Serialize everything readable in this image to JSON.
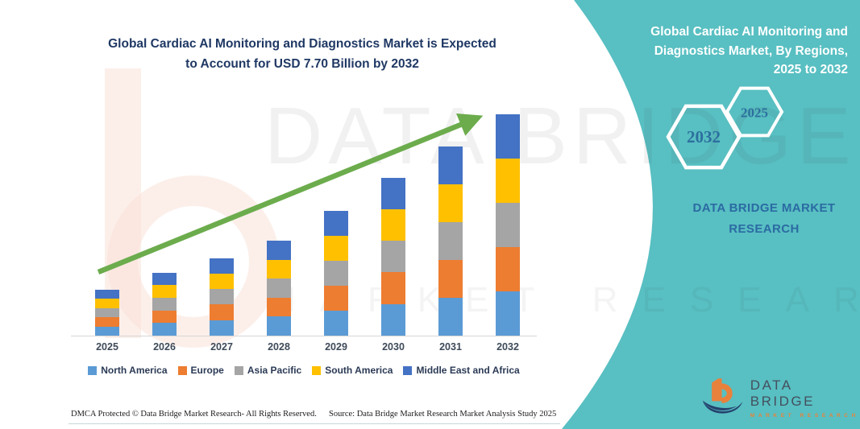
{
  "header": {
    "chart_title_lines": [
      "Global Cardiac AI Monitoring and Diagnostics Market is Expected",
      "to Account for USD 7.70 Billion by 2032"
    ]
  },
  "chart_data": {
    "type": "bar",
    "stacked": true,
    "unit": "USD Billion",
    "title": "Global Cardiac AI Monitoring and Diagnostics Market is Expected to Account for USD 7.70 Billion by 2032",
    "categories": [
      "2025",
      "2026",
      "2027",
      "2028",
      "2029",
      "2030",
      "2031",
      "2032"
    ],
    "series": [
      {
        "name": "North America",
        "color": "#5B9BD5",
        "values": [
          0.32,
          0.44,
          0.54,
          0.66,
          0.87,
          1.1,
          1.32,
          1.54
        ]
      },
      {
        "name": "Europe",
        "color": "#ED7D31",
        "values": [
          0.32,
          0.44,
          0.54,
          0.66,
          0.87,
          1.1,
          1.32,
          1.54
        ]
      },
      {
        "name": "Asia Pacific",
        "color": "#A5A5A5",
        "values": [
          0.32,
          0.44,
          0.54,
          0.66,
          0.87,
          1.1,
          1.32,
          1.54
        ]
      },
      {
        "name": "South America",
        "color": "#FFC000",
        "values": [
          0.32,
          0.44,
          0.54,
          0.66,
          0.87,
          1.1,
          1.32,
          1.54
        ]
      },
      {
        "name": "Middle East and Africa",
        "color": "#4472C4",
        "values": [
          0.32,
          0.44,
          0.54,
          0.66,
          0.87,
          1.1,
          1.32,
          1.54
        ]
      }
    ],
    "totals": [
      1.6,
      2.2,
      2.7,
      3.3,
      4.35,
      5.5,
      6.6,
      7.7
    ],
    "ylim": [
      0,
      7.7
    ],
    "grid": false,
    "y_axis_shown": false,
    "legend_position": "bottom",
    "annotations": [
      "green upward trend arrow from 2025 to 2032"
    ]
  },
  "right_panel": {
    "title_lines": [
      "Global Cardiac AI Monitoring and",
      "Diagnostics Market, By Regions,",
      "2025 to 2032"
    ],
    "hexagon_large_label": "2032",
    "hexagon_small_label": "2025",
    "brand_lines": [
      "DATA BRIDGE MARKET",
      "RESEARCH"
    ]
  },
  "logo": {
    "title": "DATA BRIDGE",
    "subtitle": "MARKET RESEARCH"
  },
  "watermark": {
    "line1": "DATA BRIDGE",
    "line2": "MARKET RESEARCH"
  },
  "footer": {
    "dmca": "DMCA Protected © Data Bridge Market Research-  All Rights Reserved.",
    "source": "Source: Data Bridge Market Research  Market Analysis Study 2025"
  },
  "colors": {
    "teal_panel": "#58BFC2",
    "title_navy": "#1F3864",
    "arrow_green": "#6CAC4D",
    "hexagon_year_blue": "#2C6F9E",
    "brand_blue": "#2B6BA3",
    "logo_orange": "#E8813B",
    "logo_navy": "#24426E"
  }
}
